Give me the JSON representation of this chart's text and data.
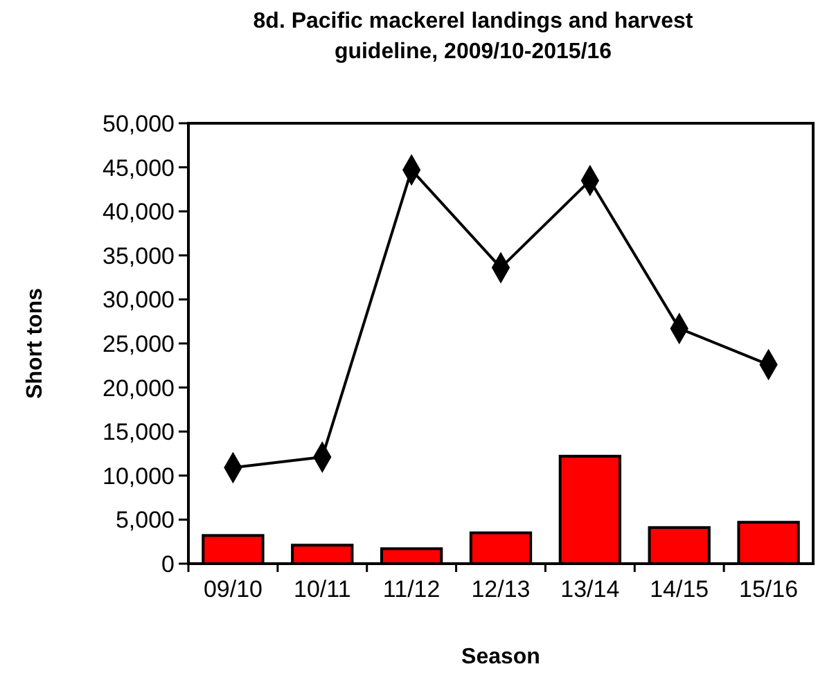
{
  "chart_data": {
    "type": "bar",
    "title": "8d. Pacific mackerel landings and harvest guideline, 2009/10-2015/16",
    "xlabel": "Season",
    "ylabel": "Short tons",
    "categories": [
      "09/10",
      "10/11",
      "11/12",
      "12/13",
      "13/14",
      "14/15",
      "15/16"
    ],
    "series": [
      {
        "color": "#ff0000",
        "values": [
          3200,
          2100,
          1700,
          3500,
          12200,
          4100,
          4700
        ]
      },
      {
        "type": "line",
        "color": "#000000",
        "marker": "diamond",
        "values": [
          10900,
          12100,
          44700,
          33600,
          43500,
          26700,
          22600
        ]
      }
    ],
    "ylim": [
      0,
      50000
    ],
    "yticks": [
      {
        "value": 0,
        "label": "0"
      },
      {
        "value": 5000,
        "label": "5,000"
      },
      {
        "value": 10000,
        "label": "10,000"
      },
      {
        "value": 15000,
        "label": "15,000"
      },
      {
        "value": 20000,
        "label": "20,000"
      },
      {
        "value": 25000,
        "label": "25,000"
      },
      {
        "value": 30000,
        "label": "30,000"
      },
      {
        "value": 35000,
        "label": "35,000"
      },
      {
        "value": 40000,
        "label": "40,000"
      },
      {
        "value": 45000,
        "label": "45,000"
      },
      {
        "value": 50000,
        "label": "50,000"
      }
    ],
    "grid": false
  }
}
